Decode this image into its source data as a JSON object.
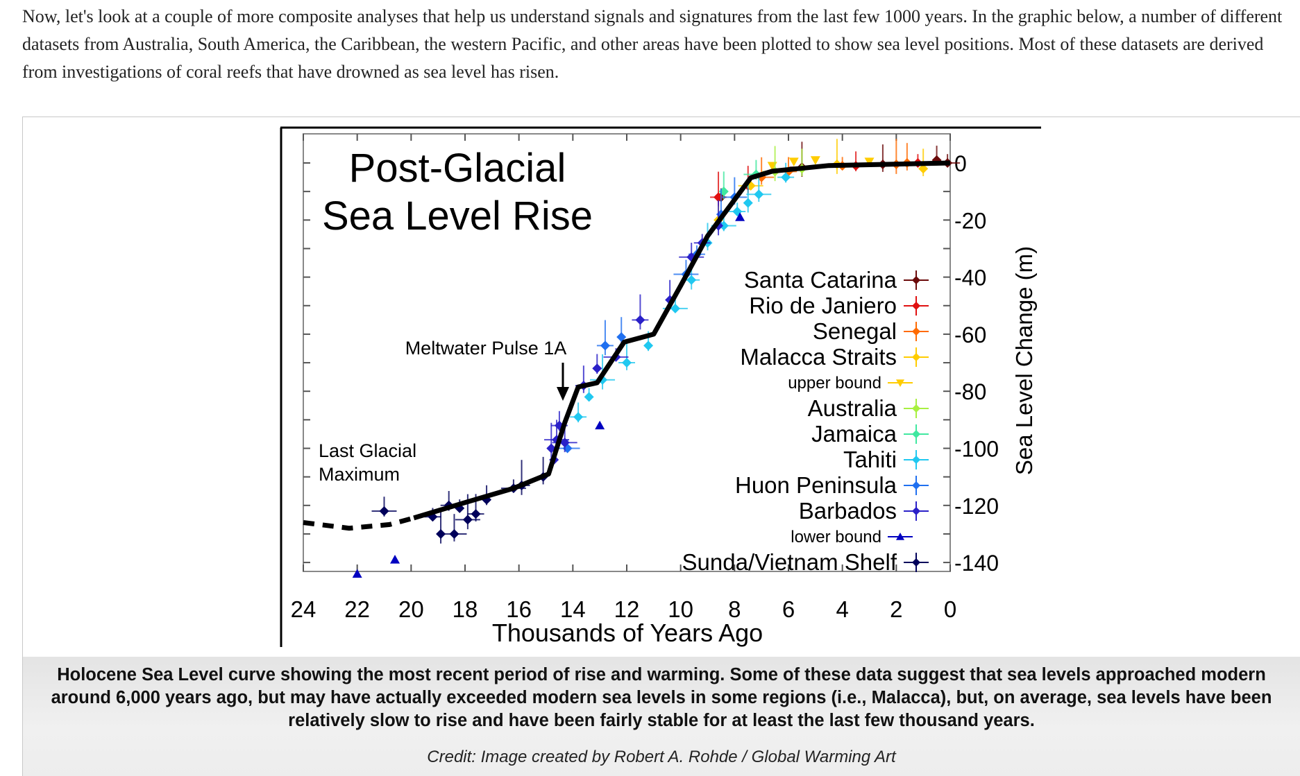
{
  "intro_text": "Now, let's look at a couple of more composite analyses that help us understand signals and signatures from the last few 1000 years. In the graphic below, a number of different datasets from Australia, South America, the Caribbean, the western Pacific, and other areas have been plotted to show sea level positions. Most of these datasets are derived from investigations of coral reefs that have drowned as sea level has risen.",
  "figure": {
    "caption": "Holocene Sea Level curve showing the most recent period of rise and warming. Some of these data suggest that sea levels approached modern around 6,000 years ago, but may have actually exceeded modern sea levels in some regions (i.e., Malacca), but, on average, sea levels have been relatively slow to rise and have been fairly stable for at least the last few thousand years.",
    "credit": "Credit: Image created by Robert A. Rohde / Global Warming Art"
  },
  "chart_data": {
    "type": "scatter",
    "title": [
      "Post-Glacial",
      "Sea Level Rise"
    ],
    "xlabel": "Thousands of Years Ago",
    "ylabel": "Sea Level Change (m)",
    "xlim": [
      24,
      0
    ],
    "ylim": [
      -150,
      4
    ],
    "x_ticks": [
      24,
      22,
      20,
      18,
      16,
      14,
      12,
      10,
      8,
      6,
      4,
      2,
      0
    ],
    "y_ticks": [
      0,
      -20,
      -40,
      -60,
      -80,
      -100,
      -120,
      -140
    ],
    "y_axis_side": "right",
    "grid": false,
    "legend_placement": "right",
    "annotations": [
      {
        "text": "Meltwater Pulse 1A",
        "arrow_to": [
          14.4,
          -84
        ]
      },
      {
        "text": [
          "Last Glacial",
          "Maximum"
        ]
      }
    ],
    "curve": {
      "dashed": [
        [
          24,
          -126
        ],
        [
          22.3,
          -128
        ],
        [
          20.8,
          -126.7
        ],
        [
          19.9,
          -124.4
        ]
      ],
      "solid": [
        [
          19.9,
          -124.4
        ],
        [
          18.0,
          -119
        ],
        [
          16.2,
          -114
        ],
        [
          14.9,
          -109
        ],
        [
          14.3,
          -91
        ],
        [
          13.8,
          -78.5
        ],
        [
          13.1,
          -77
        ],
        [
          12.1,
          -62.8
        ],
        [
          11.0,
          -60
        ],
        [
          10.0,
          -43
        ],
        [
          9.0,
          -25.6
        ],
        [
          8.2,
          -15.4
        ],
        [
          7.4,
          -5.2
        ],
        [
          6.6,
          -2.9
        ],
        [
          4.5,
          -0.9
        ],
        [
          0,
          0
        ]
      ]
    },
    "series": [
      {
        "name": "Santa Catarina",
        "color": "#6b0a0a",
        "marker": "diamond",
        "points": [
          [
            8.5,
            -12
          ],
          [
            5.5,
            -1.5
          ],
          [
            2.5,
            -0.5
          ],
          [
            0.5,
            1
          ],
          [
            0.1,
            0
          ]
        ]
      },
      {
        "name": "Rio de Janiero",
        "color": "#e01010",
        "marker": "diamond",
        "points": [
          [
            8.6,
            -12
          ],
          [
            7.5,
            -8
          ],
          [
            3.5,
            -1
          ],
          [
            1.2,
            0
          ]
        ]
      },
      {
        "name": "Senegal",
        "color": "#ff6a00",
        "marker": "diamond",
        "points": [
          [
            7.0,
            -5
          ],
          [
            6.0,
            -3
          ],
          [
            4.0,
            -1
          ],
          [
            2.0,
            -0.5
          ],
          [
            1.6,
            0
          ]
        ]
      },
      {
        "name": "Malacca Straits",
        "color": "#ffcc00",
        "marker": "diamond",
        "points": [
          [
            8.6,
            -20
          ],
          [
            7.4,
            -8
          ],
          [
            4.2,
            -0.5
          ],
          [
            1.0,
            -2
          ]
        ]
      },
      {
        "name": "upper bound",
        "color": "#ffcc00",
        "marker": "triangle-down",
        "small_label": true,
        "points": [
          [
            6.6,
            -1
          ],
          [
            5.8,
            0.5
          ],
          [
            5.0,
            1
          ],
          [
            3.0,
            0.5
          ]
        ]
      },
      {
        "name": "Australia",
        "color": "#a8f040",
        "marker": "diamond",
        "points": [
          [
            6.5,
            -3
          ],
          [
            5.5,
            -2
          ]
        ]
      },
      {
        "name": "Jamaica",
        "color": "#40e8a0",
        "marker": "diamond",
        "points": [
          [
            8.4,
            -10
          ],
          [
            7.2,
            -4
          ]
        ]
      },
      {
        "name": "Tahiti",
        "color": "#20c8f0",
        "marker": "diamond",
        "points": [
          [
            13.8,
            -89
          ],
          [
            13.4,
            -82
          ],
          [
            12.9,
            -76
          ],
          [
            12.0,
            -70
          ],
          [
            11.2,
            -64
          ],
          [
            10.2,
            -51
          ],
          [
            9.6,
            -41
          ],
          [
            9.0,
            -28
          ],
          [
            8.4,
            -22
          ],
          [
            7.9,
            -17
          ],
          [
            7.5,
            -14
          ],
          [
            7.1,
            -11
          ],
          [
            6.1,
            -5
          ]
        ]
      },
      {
        "name": "Huon Peninsula",
        "color": "#2070f0",
        "marker": "diamond",
        "points": [
          [
            14.2,
            -100
          ],
          [
            12.8,
            -64
          ],
          [
            12.2,
            -61
          ],
          [
            9.8,
            -39
          ],
          [
            9.4,
            -32
          ],
          [
            8.5,
            -18
          ],
          [
            8.0,
            -12
          ]
        ]
      },
      {
        "name": "Barbados",
        "color": "#2a20c8",
        "marker": "diamond",
        "points": [
          [
            14.8,
            -100
          ],
          [
            14.6,
            -97
          ],
          [
            14.5,
            -92
          ],
          [
            14.7,
            -104
          ],
          [
            14.3,
            -98
          ],
          [
            13.6,
            -78
          ],
          [
            13.1,
            -72
          ],
          [
            12.4,
            -68
          ],
          [
            11.5,
            -55
          ],
          [
            10.4,
            -48
          ],
          [
            9.6,
            -33
          ],
          [
            9.2,
            -28
          ],
          [
            8.6,
            -22
          ]
        ]
      },
      {
        "name": "lower bound",
        "color": "#0000c0",
        "marker": "triangle-up",
        "small_label": true,
        "points": [
          [
            22.0,
            -144
          ],
          [
            20.6,
            -139
          ],
          [
            13.0,
            -92
          ],
          [
            7.8,
            -19
          ]
        ]
      },
      {
        "name": "Sunda/Vietnam Shelf",
        "color": "#00005a",
        "marker": "diamond",
        "points": [
          [
            21.0,
            -122
          ],
          [
            19.2,
            -124
          ],
          [
            18.9,
            -130
          ],
          [
            18.4,
            -130
          ],
          [
            18.6,
            -120
          ],
          [
            18.2,
            -121
          ],
          [
            17.9,
            -125
          ],
          [
            17.6,
            -123
          ],
          [
            17.2,
            -118
          ],
          [
            16.2,
            -114
          ],
          [
            15.9,
            -113
          ],
          [
            15.1,
            -110
          ]
        ]
      }
    ]
  }
}
